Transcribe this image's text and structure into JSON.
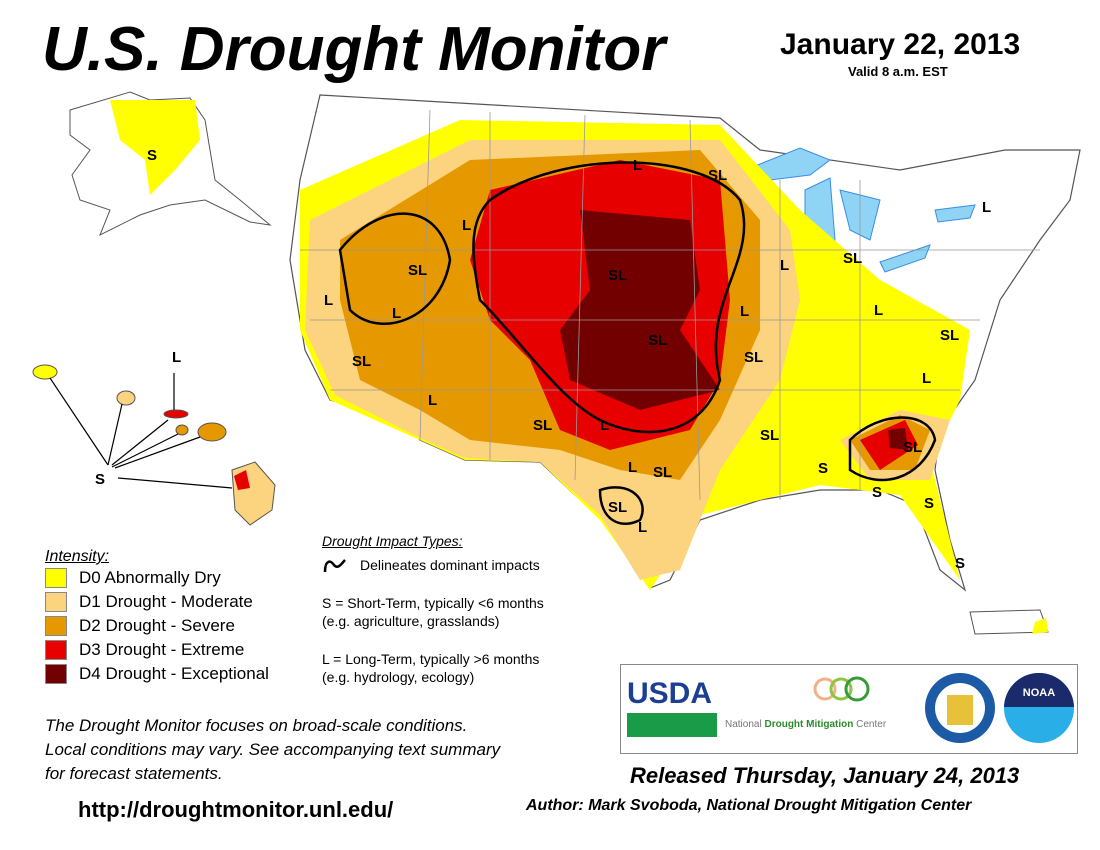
{
  "header": {
    "title": "U.S. Drought Monitor",
    "date": "January 22, 2013",
    "valid": "Valid 8 a.m. EST"
  },
  "legend": {
    "title": "Intensity:",
    "items": [
      {
        "label": "D0 Abnormally Dry",
        "color": "#ffff00"
      },
      {
        "label": "D1 Drought - Moderate",
        "color": "#fcd37f"
      },
      {
        "label": "D2 Drought - Severe",
        "color": "#e69800"
      },
      {
        "label": "D3 Drought - Extreme",
        "color": "#e60000"
      },
      {
        "label": "D4 Drought - Exceptional",
        "color": "#730000"
      }
    ]
  },
  "impacts": {
    "title": "Drought Impact Types:",
    "line_label": "Delineates dominant impacts",
    "short_term": "S = Short-Term, typically <6 months",
    "short_term_eg": "(e.g. agriculture, grasslands)",
    "long_term": "L = Long-Term, typically >6 months",
    "long_term_eg": "(e.g. hydrology, ecology)"
  },
  "map_labels": [
    "S",
    "L",
    "SL",
    "L",
    "SL",
    "L",
    "SL",
    "SL",
    "L",
    "SL",
    "L",
    "SL",
    "SL",
    "L",
    "SL",
    "L",
    "L",
    "SL",
    "SL",
    "L",
    "L",
    "SL",
    "S",
    "S",
    "S",
    "S",
    "L",
    "L",
    "S",
    "SL",
    "L",
    "SL",
    "L"
  ],
  "note": [
    "The Drought Monitor focuses on broad-scale conditions.",
    "Local conditions may vary.  See accompanying text summary",
    "for forecast statements."
  ],
  "url": "http://droughtmonitor.unl.edu/",
  "released": "Released Thursday, January 24, 2013",
  "author": "Author: Mark Svoboda, National Drought Mitigation Center",
  "logos": {
    "usda": "USDA",
    "ndmc_1": "National",
    "ndmc_2": "Drought Mitigation",
    "ndmc_3": "Center",
    "noaa": "NOAA"
  },
  "colors": {
    "water": "#8fd3f5",
    "river": "#3c8ce6",
    "border": "#999999"
  }
}
